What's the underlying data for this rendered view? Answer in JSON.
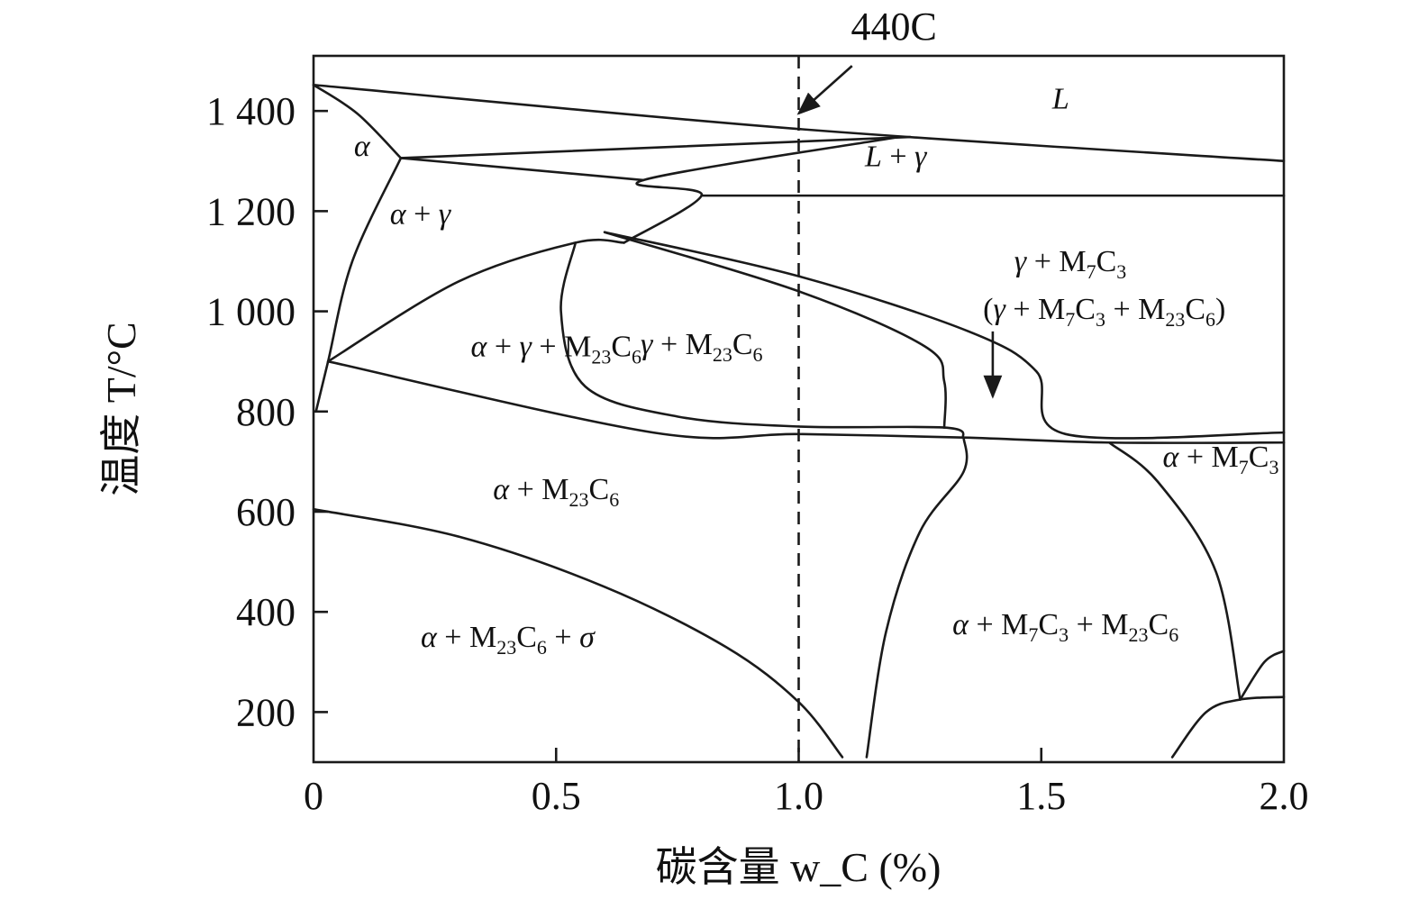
{
  "chart_data": {
    "type": "phase-diagram",
    "xlabel": "碳含量 w_C (%)",
    "ylabel": "温度 T/°C",
    "xlim": [
      0,
      2.0
    ],
    "ylim": [
      100,
      1510
    ],
    "x_ticks": [
      {
        "value": 0,
        "label": "0"
      },
      {
        "value": 0.5,
        "label": "0.5"
      },
      {
        "value": 1.0,
        "label": "1.0"
      },
      {
        "value": 1.5,
        "label": "1.5"
      },
      {
        "value": 2.0,
        "label": "2.0"
      }
    ],
    "y_ticks": [
      {
        "value": 200,
        "label": "200"
      },
      {
        "value": 400,
        "label": "400"
      },
      {
        "value": 600,
        "label": "600"
      },
      {
        "value": 800,
        "label": "800"
      },
      {
        "value": 1000,
        "label": "1 000"
      },
      {
        "value": 1200,
        "label": "1 200"
      },
      {
        "value": 1400,
        "label": "1 400"
      }
    ],
    "grid": false,
    "marker": {
      "label": "440C",
      "x": 1.0
    },
    "boundaries": [
      {
        "name": "liquidus",
        "points": [
          [
            0,
            1452
          ],
          [
            1.0,
            1364
          ],
          [
            2.0,
            1300
          ]
        ]
      },
      {
        "name": "L-gamma-upper",
        "points": [
          [
            0.18,
            1306
          ],
          [
            1.23,
            1348
          ]
        ]
      },
      {
        "name": "gamma-solvus",
        "points": [
          [
            0.64,
            1137
          ],
          [
            0.8,
            1232
          ],
          [
            0.68,
            1262
          ],
          [
            1.2,
            1347
          ]
        ]
      },
      {
        "name": "eutectic-1230",
        "points": [
          [
            0.8,
            1231
          ],
          [
            2.0,
            1231
          ]
        ]
      },
      {
        "name": "alpha-gamma-top",
        "points": [
          [
            0.18,
            1306
          ],
          [
            0.68,
            1262
          ]
        ]
      },
      {
        "name": "alpha-delta",
        "points": [
          [
            0,
            1452
          ],
          [
            0.09,
            1395
          ],
          [
            0.18,
            1306
          ]
        ]
      },
      {
        "name": "alpha-left",
        "points": [
          [
            0.005,
            800
          ],
          [
            0.03,
            900
          ],
          [
            0.08,
            1100
          ],
          [
            0.18,
            1306
          ]
        ]
      },
      {
        "name": "gamma-M23C6-upper",
        "points": [
          [
            0.03,
            900
          ],
          [
            0.3,
            1060
          ],
          [
            0.54,
            1137
          ],
          [
            0.64,
            1137
          ]
        ]
      },
      {
        "name": "gamma-M23C6-solvus",
        "points": [
          [
            0.54,
            1137
          ],
          [
            0.51,
            1000
          ],
          [
            0.56,
            850
          ],
          [
            0.75,
            790
          ],
          [
            1.0,
            770
          ],
          [
            1.3,
            768
          ],
          [
            1.34,
            748
          ]
        ]
      },
      {
        "name": "M7C3-left-boundary",
        "points": [
          [
            0.6,
            1158
          ],
          [
            1.0,
            1040
          ],
          [
            1.26,
            930
          ],
          [
            1.3,
            860
          ],
          [
            1.3,
            768
          ]
        ]
      },
      {
        "name": "M7C3-right-boundary",
        "points": [
          [
            0.6,
            1158
          ],
          [
            1.0,
            1070
          ],
          [
            1.35,
            960
          ],
          [
            1.49,
            880
          ],
          [
            1.55,
            755
          ],
          [
            2.0,
            758
          ]
        ]
      },
      {
        "name": "eutectoid-line",
        "points": [
          [
            0.03,
            900
          ],
          [
            0.7,
            758
          ],
          [
            1.0,
            755
          ],
          [
            1.34,
            748
          ],
          [
            1.64,
            738
          ],
          [
            2.0,
            738
          ]
        ]
      },
      {
        "name": "alpha-M7C3-boundary",
        "points": [
          [
            1.64,
            738
          ],
          [
            1.74,
            660
          ],
          [
            1.86,
            480
          ],
          [
            1.91,
            225
          ]
        ]
      },
      {
        "name": "alpha-M23C6-sigma",
        "points": [
          [
            0,
            605
          ],
          [
            0.3,
            550
          ],
          [
            0.6,
            450
          ],
          [
            0.85,
            330
          ],
          [
            1.0,
            220
          ],
          [
            1.09,
            110
          ]
        ]
      },
      {
        "name": "M7C3-M23C6-left",
        "points": [
          [
            1.34,
            748
          ],
          [
            1.34,
            680
          ],
          [
            1.25,
            560
          ],
          [
            1.18,
            360
          ],
          [
            1.14,
            110
          ]
        ]
      },
      {
        "name": "low-right-upper",
        "points": [
          [
            1.91,
            225
          ],
          [
            1.96,
            300
          ],
          [
            2.0,
            322
          ]
        ]
      },
      {
        "name": "low-right-lower",
        "points": [
          [
            1.77,
            110
          ],
          [
            1.84,
            200
          ],
          [
            1.91,
            225
          ],
          [
            2.0,
            230
          ]
        ]
      }
    ],
    "regions": [
      {
        "name": "L",
        "x": 1.54,
        "y": 1405,
        "parts": [
          {
            "t": "L",
            "i": true
          }
        ]
      },
      {
        "name": "L-gamma",
        "x": 1.2,
        "y": 1290,
        "parts": [
          {
            "t": "L",
            "i": true
          },
          {
            "t": " + "
          },
          {
            "t": "γ",
            "i": true
          }
        ]
      },
      {
        "name": "alpha",
        "x": 0.1,
        "y": 1310,
        "parts": [
          {
            "t": "α",
            "i": true
          }
        ]
      },
      {
        "name": "alpha-gamma",
        "x": 0.22,
        "y": 1175,
        "parts": [
          {
            "t": "α",
            "i": true
          },
          {
            "t": " + "
          },
          {
            "t": "γ",
            "i": true
          }
        ]
      },
      {
        "name": "gamma-M7C3",
        "x": 1.56,
        "y": 1080,
        "parts": [
          {
            "t": "γ",
            "i": true
          },
          {
            "t": " + M"
          },
          {
            "t": "7",
            "sub": true
          },
          {
            "t": "C"
          },
          {
            "t": "3",
            "sub": true
          }
        ]
      },
      {
        "name": "gamma-M7C3-M23C6",
        "x": 1.63,
        "y": 985,
        "parts": [
          {
            "t": "("
          },
          {
            "t": "γ",
            "i": true
          },
          {
            "t": " + M"
          },
          {
            "t": "7",
            "sub": true
          },
          {
            "t": "C"
          },
          {
            "t": "3",
            "sub": true
          },
          {
            "t": " + M"
          },
          {
            "t": "23",
            "sub": true
          },
          {
            "t": "C"
          },
          {
            "t": "6",
            "sub": true
          },
          {
            "t": ")"
          }
        ]
      },
      {
        "name": "alpha-gamma-M23C6",
        "x": 0.5,
        "y": 910,
        "parts": [
          {
            "t": "α",
            "i": true
          },
          {
            "t": " + "
          },
          {
            "t": "γ",
            "i": true
          },
          {
            "t": " + M"
          },
          {
            "t": "23",
            "sub": true
          },
          {
            "t": "C"
          },
          {
            "t": "6",
            "sub": true
          }
        ]
      },
      {
        "name": "gamma-M23C6",
        "x": 0.8,
        "y": 915,
        "parts": [
          {
            "t": "γ",
            "i": true
          },
          {
            "t": " + M"
          },
          {
            "t": "23",
            "sub": true
          },
          {
            "t": "C"
          },
          {
            "t": "6",
            "sub": true
          }
        ]
      },
      {
        "name": "alpha-M7C3",
        "x": 1.87,
        "y": 690,
        "parts": [
          {
            "t": "α",
            "i": true
          },
          {
            "t": " + M"
          },
          {
            "t": "7",
            "sub": true
          },
          {
            "t": "C"
          },
          {
            "t": "3",
            "sub": true
          }
        ]
      },
      {
        "name": "alpha-M23C6",
        "x": 0.5,
        "y": 625,
        "parts": [
          {
            "t": "α",
            "i": true
          },
          {
            "t": " + M"
          },
          {
            "t": "23",
            "sub": true
          },
          {
            "t": "C"
          },
          {
            "t": "6",
            "sub": true
          }
        ]
      },
      {
        "name": "alpha-M23C6-sigma",
        "x": 0.4,
        "y": 330,
        "parts": [
          {
            "t": "α",
            "i": true
          },
          {
            "t": " + M"
          },
          {
            "t": "23",
            "sub": true
          },
          {
            "t": "C"
          },
          {
            "t": "6",
            "sub": true
          },
          {
            "t": " + "
          },
          {
            "t": "σ",
            "i": true
          }
        ]
      },
      {
        "name": "alpha-M7C3-M23C6",
        "x": 1.55,
        "y": 355,
        "parts": [
          {
            "t": "α",
            "i": true
          },
          {
            "t": " + M"
          },
          {
            "t": "7",
            "sub": true
          },
          {
            "t": "C"
          },
          {
            "t": "3",
            "sub": true
          },
          {
            "t": " + M"
          },
          {
            "t": "23",
            "sub": true
          },
          {
            "t": "C"
          },
          {
            "t": "6",
            "sub": true
          }
        ]
      }
    ],
    "arrows": [
      {
        "name": "marker-arrow",
        "from": [
          1.11,
          1490
        ],
        "to": [
          1.0,
          1395
        ]
      },
      {
        "name": "region-arrow",
        "from": [
          1.4,
          960
        ],
        "to": [
          1.4,
          830
        ]
      }
    ]
  }
}
